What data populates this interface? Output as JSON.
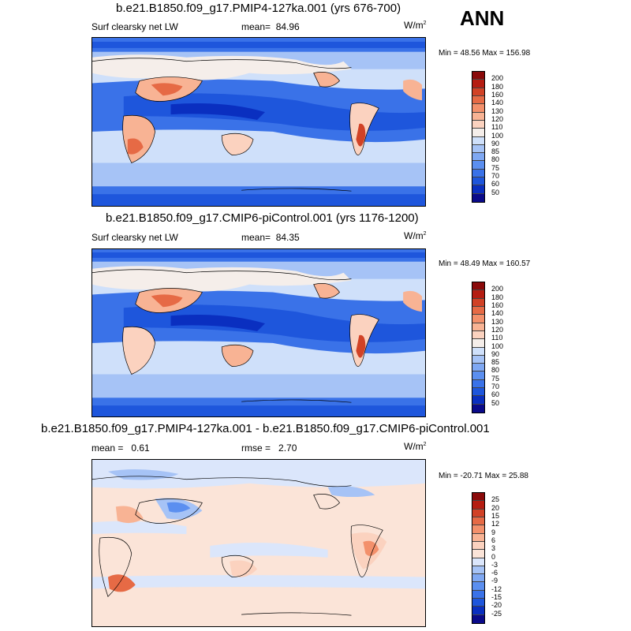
{
  "season": "ANN",
  "panels": [
    {
      "title": "b.e21.B1850.f09_g17.PMIP4-127ka.001 (yrs 676-700)",
      "variable": "Surf clearsky net LW",
      "stat_label": "mean=",
      "stat_value": "84.96",
      "units": "W/m",
      "units_exp": "2",
      "min_label": "Min =",
      "min_value": "48.56",
      "max_label": "Max =",
      "max_value": "156.98",
      "levels": [
        "50",
        "60",
        "70",
        "75",
        "80",
        "85",
        "90",
        "100",
        "110",
        "120",
        "130",
        "140",
        "160",
        "180",
        "200"
      ],
      "colors": [
        "#0a0a8a",
        "#0a2fc0",
        "#1e56dc",
        "#3a72e8",
        "#5b8ff0",
        "#7fa8f3",
        "#a6c3f6",
        "#cfe0fa",
        "#f5eeea",
        "#fbd2bf",
        "#f8b394",
        "#f3906b",
        "#e66a45",
        "#d14226",
        "#b51d12",
        "#8a0a0a"
      ]
    },
    {
      "title": "b.e21.B1850.f09_g17.CMIP6-piControl.001 (yrs 1176-1200)",
      "variable": "Surf clearsky net LW",
      "stat_label": "mean=",
      "stat_value": "84.35",
      "units": "W/m",
      "units_exp": "2",
      "min_label": "Min =",
      "min_value": "48.49",
      "max_label": "Max =",
      "max_value": "160.57",
      "levels": [
        "50",
        "60",
        "70",
        "75",
        "80",
        "85",
        "90",
        "100",
        "110",
        "120",
        "130",
        "140",
        "160",
        "180",
        "200"
      ],
      "colors": [
        "#0a0a8a",
        "#0a2fc0",
        "#1e56dc",
        "#3a72e8",
        "#5b8ff0",
        "#7fa8f3",
        "#a6c3f6",
        "#cfe0fa",
        "#f5eeea",
        "#fbd2bf",
        "#f8b394",
        "#f3906b",
        "#e66a45",
        "#d14226",
        "#b51d12",
        "#8a0a0a"
      ]
    },
    {
      "title": "b.e21.B1850.f09_g17.PMIP4-127ka.001 - b.e21.B1850.f09_g17.CMIP6-piControl.001",
      "variable": "",
      "mean_label": "mean =",
      "mean_value": "0.61",
      "stat_label": "rmse =",
      "stat_value": "2.70",
      "units": "W/m",
      "units_exp": "2",
      "min_label": "Min =",
      "min_value": "-20.71",
      "max_label": "Max =",
      "max_value": "25.88",
      "levels": [
        "-25",
        "-20",
        "-15",
        "-12",
        "-9",
        "-6",
        "-3",
        "0",
        "3",
        "6",
        "9",
        "12",
        "15",
        "20",
        "25"
      ],
      "colors": [
        "#0a0a8a",
        "#0a2fc0",
        "#1e56dc",
        "#3a72e8",
        "#5b8ff0",
        "#7fa8f3",
        "#a6c3f6",
        "#dbe6fb",
        "#fbe4d8",
        "#fbd2bf",
        "#f8b394",
        "#f3906b",
        "#e66a45",
        "#d14226",
        "#b51d12",
        "#8a0a0a"
      ]
    }
  ]
}
